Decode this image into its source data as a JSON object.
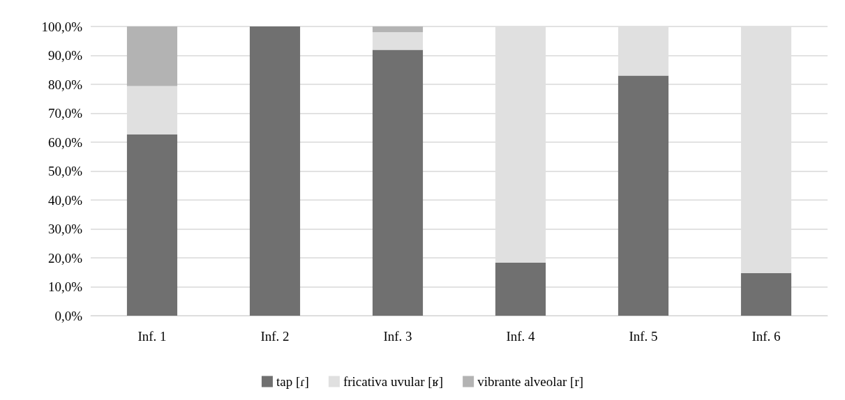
{
  "chart_data": {
    "type": "bar",
    "stacked": true,
    "categories": [
      "Inf. 1",
      "Inf. 2",
      "Inf. 3",
      "Inf. 4",
      "Inf. 5",
      "Inf. 6"
    ],
    "series": [
      {
        "name": "tap [ɾ]",
        "color": "#707070",
        "values": [
          62.7,
          100,
          91.9,
          18.4,
          83.0,
          14.7
        ]
      },
      {
        "name": "fricativa uvular [ʁ]",
        "color": "#e0e0e0",
        "values": [
          16.7,
          0,
          6.1,
          81.6,
          17.0,
          85.3
        ]
      },
      {
        "name": "vibrante alveolar [r]",
        "color": "#b3b3b3",
        "values": [
          20.6,
          0,
          2.0,
          0,
          0,
          0
        ]
      }
    ],
    "ylim": [
      0,
      100
    ],
    "yticks": [
      {
        "value": 0,
        "label": "0,0%"
      },
      {
        "value": 10,
        "label": "10,0%"
      },
      {
        "value": 20,
        "label": "20,0%"
      },
      {
        "value": 30,
        "label": "30,0%"
      },
      {
        "value": 40,
        "label": "40,0%"
      },
      {
        "value": 50,
        "label": "50,0%"
      },
      {
        "value": 60,
        "label": "60,0%"
      },
      {
        "value": 70,
        "label": "70,0%"
      },
      {
        "value": 80,
        "label": "80,0%"
      },
      {
        "value": 90,
        "label": "90,0%"
      },
      {
        "value": 100,
        "label": "100,0%"
      }
    ],
    "grid": "y",
    "legend": "bottom"
  }
}
